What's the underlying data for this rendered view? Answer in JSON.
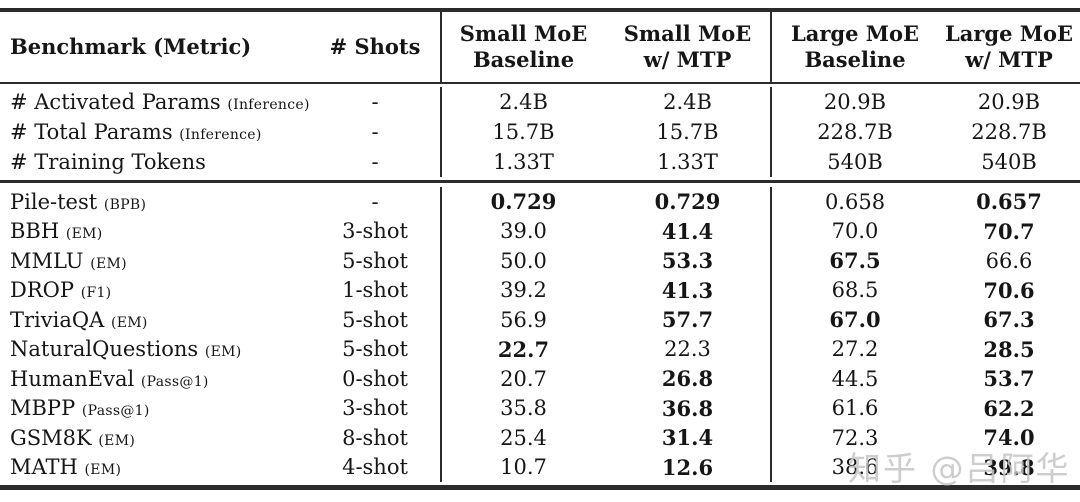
{
  "table": {
    "columns": [
      {
        "label": "Benchmark (Metric)"
      },
      {
        "label": "# Shots"
      },
      {
        "line1": "Small MoE",
        "line2": "Baseline"
      },
      {
        "line1": "Small MoE",
        "line2": "w/ MTP"
      },
      {
        "line1": "Large MoE",
        "line2": "Baseline"
      },
      {
        "line1": "Large MoE",
        "line2": "w/ MTP"
      }
    ],
    "param_rows": [
      {
        "name": "# Activated Params",
        "metric": "(Inference)",
        "shots": "-",
        "values": [
          {
            "text": "2.4B",
            "bold": false
          },
          {
            "text": "2.4B",
            "bold": false
          },
          {
            "text": "20.9B",
            "bold": false
          },
          {
            "text": "20.9B",
            "bold": false
          }
        ]
      },
      {
        "name": "# Total Params",
        "metric": "(Inference)",
        "shots": "-",
        "values": [
          {
            "text": "15.7B",
            "bold": false
          },
          {
            "text": "15.7B",
            "bold": false
          },
          {
            "text": "228.7B",
            "bold": false
          },
          {
            "text": "228.7B",
            "bold": false
          }
        ]
      },
      {
        "name": "# Training Tokens",
        "metric": "",
        "shots": "-",
        "values": [
          {
            "text": "1.33T",
            "bold": false
          },
          {
            "text": "1.33T",
            "bold": false
          },
          {
            "text": "540B",
            "bold": false
          },
          {
            "text": "540B",
            "bold": false
          }
        ]
      }
    ],
    "benchmark_rows": [
      {
        "name": "Pile-test",
        "metric": "(BPB)",
        "shots": "-",
        "values": [
          {
            "text": "0.729",
            "bold": true
          },
          {
            "text": "0.729",
            "bold": true
          },
          {
            "text": "0.658",
            "bold": false
          },
          {
            "text": "0.657",
            "bold": true
          }
        ]
      },
      {
        "name": "BBH",
        "metric": "(EM)",
        "shots": "3-shot",
        "values": [
          {
            "text": "39.0",
            "bold": false
          },
          {
            "text": "41.4",
            "bold": true
          },
          {
            "text": "70.0",
            "bold": false
          },
          {
            "text": "70.7",
            "bold": true
          }
        ]
      },
      {
        "name": "MMLU",
        "metric": "(EM)",
        "shots": "5-shot",
        "values": [
          {
            "text": "50.0",
            "bold": false
          },
          {
            "text": "53.3",
            "bold": true
          },
          {
            "text": "67.5",
            "bold": true
          },
          {
            "text": "66.6",
            "bold": false
          }
        ]
      },
      {
        "name": "DROP",
        "metric": "(F1)",
        "shots": "1-shot",
        "values": [
          {
            "text": "39.2",
            "bold": false
          },
          {
            "text": "41.3",
            "bold": true
          },
          {
            "text": "68.5",
            "bold": false
          },
          {
            "text": "70.6",
            "bold": true
          }
        ]
      },
      {
        "name": "TriviaQA",
        "metric": "(EM)",
        "shots": "5-shot",
        "values": [
          {
            "text": "56.9",
            "bold": false
          },
          {
            "text": "57.7",
            "bold": true
          },
          {
            "text": "67.0",
            "bold": true
          },
          {
            "text": "67.3",
            "bold": true
          }
        ]
      },
      {
        "name": "NaturalQuestions",
        "metric": "(EM)",
        "shots": "5-shot",
        "values": [
          {
            "text": "22.7",
            "bold": true
          },
          {
            "text": "22.3",
            "bold": false
          },
          {
            "text": "27.2",
            "bold": false
          },
          {
            "text": "28.5",
            "bold": true
          }
        ]
      },
      {
        "name": "HumanEval",
        "metric": "(Pass@1)",
        "shots": "0-shot",
        "values": [
          {
            "text": "20.7",
            "bold": false
          },
          {
            "text": "26.8",
            "bold": true
          },
          {
            "text": "44.5",
            "bold": false
          },
          {
            "text": "53.7",
            "bold": true
          }
        ]
      },
      {
        "name": "MBPP",
        "metric": "(Pass@1)",
        "shots": "3-shot",
        "values": [
          {
            "text": "35.8",
            "bold": false
          },
          {
            "text": "36.8",
            "bold": true
          },
          {
            "text": "61.6",
            "bold": false
          },
          {
            "text": "62.2",
            "bold": true
          }
        ]
      },
      {
        "name": "GSM8K",
        "metric": "(EM)",
        "shots": "8-shot",
        "values": [
          {
            "text": "25.4",
            "bold": false
          },
          {
            "text": "31.4",
            "bold": true
          },
          {
            "text": "72.3",
            "bold": false
          },
          {
            "text": "74.0",
            "bold": true
          }
        ]
      },
      {
        "name": "MATH",
        "metric": "(EM)",
        "shots": "4-shot",
        "values": [
          {
            "text": "10.7",
            "bold": false
          },
          {
            "text": "12.6",
            "bold": true
          },
          {
            "text": "38.6",
            "bold": false
          },
          {
            "text": "39.8",
            "bold": true
          }
        ]
      }
    ]
  },
  "watermark": "知乎 @吕阿华"
}
